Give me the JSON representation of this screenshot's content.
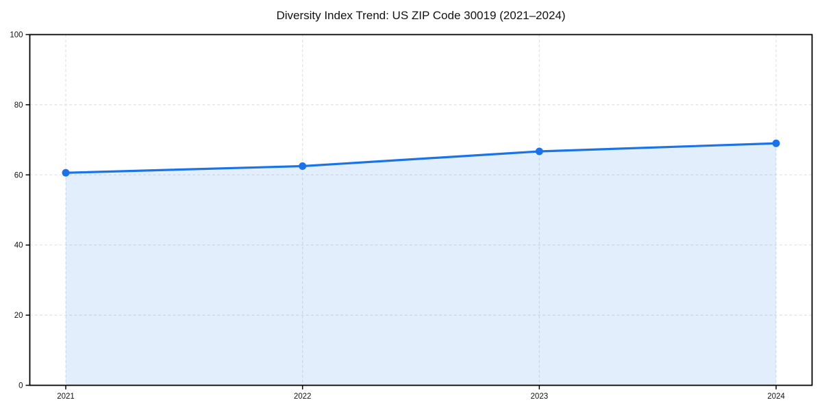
{
  "chart_data": {
    "type": "area",
    "title": "Diversity Index Trend: US ZIP Code 30019 (2021–2024)",
    "series_name": "Diversity Index",
    "categories": [
      "2021",
      "2022",
      "2023",
      "2024"
    ],
    "values": [
      60.6,
      62.5,
      66.7,
      69.0
    ],
    "xlabel": "",
    "ylabel": "",
    "ylim": [
      0,
      100
    ],
    "yticks": [
      0,
      20,
      40,
      60,
      80,
      100
    ],
    "grid": true,
    "grid_style": "dashed",
    "legend_position": "none",
    "colors": {
      "line": "#1a73e8",
      "marker": "#1a73e8",
      "fill_rgba": "rgba(26,115,232,0.12)",
      "grid": "#e2e2e2",
      "axis": "#000000",
      "background": "#ffffff",
      "text": "#111111"
    }
  }
}
